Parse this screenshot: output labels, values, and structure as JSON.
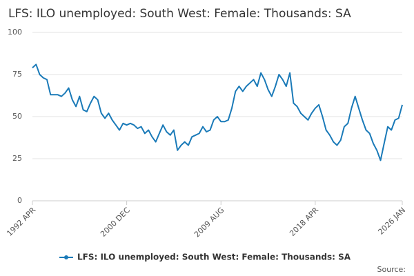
{
  "chart_data": {
    "type": "line",
    "title": "LFS: ILO unemployed: South West: Female: Thousands: SA",
    "source": "Source:",
    "categories": [
      "1992 APR",
      null,
      null,
      null,
      null,
      null,
      null,
      null,
      null,
      null,
      null,
      null,
      null,
      null,
      null,
      null,
      null,
      null,
      null,
      null,
      null,
      null,
      null,
      null,
      null,
      null,
      "2000 DEC",
      null,
      null,
      null,
      null,
      null,
      null,
      null,
      null,
      null,
      null,
      null,
      null,
      null,
      null,
      null,
      null,
      null,
      null,
      null,
      null,
      null,
      null,
      null,
      null,
      null,
      "2009 AUG",
      null,
      null,
      null,
      null,
      null,
      null,
      null,
      null,
      null,
      null,
      null,
      null,
      null,
      null,
      null,
      null,
      null,
      null,
      null,
      null,
      null,
      null,
      null,
      null,
      null,
      "2018 APR",
      null,
      null,
      null,
      null,
      null,
      null,
      null,
      null,
      null,
      null,
      null,
      null,
      null,
      null,
      null,
      null,
      null,
      null,
      null,
      null,
      null,
      null,
      null,
      "2026 JAN"
    ],
    "series": [
      {
        "name": "LFS: ILO unemployed: South West: Female: Thousands: SA",
        "color": "#1a7ab8",
        "values": [
          79,
          81,
          75,
          73,
          72,
          63,
          63,
          63,
          62,
          64,
          67,
          60,
          56,
          62,
          54,
          53,
          58,
          62,
          60,
          52,
          49,
          52,
          48,
          45,
          42,
          46,
          45,
          46,
          45,
          43,
          44,
          40,
          42,
          38,
          35,
          40,
          45,
          41,
          39,
          42,
          30,
          33,
          35,
          33,
          38,
          39,
          40,
          44,
          41,
          42,
          48,
          50,
          47,
          47,
          48,
          55,
          65,
          68,
          65,
          68,
          70,
          72,
          68,
          76,
          72,
          66,
          62,
          68,
          75,
          72,
          68,
          76,
          58,
          56,
          52,
          50,
          48,
          52,
          55,
          57,
          50,
          42,
          39,
          35,
          33,
          36,
          44,
          46,
          55,
          62,
          55,
          48,
          42,
          40,
          34,
          30,
          24,
          34,
          44,
          42,
          48,
          49,
          57
        ]
      }
    ],
    "ylim": [
      0,
      100
    ],
    "yticks": [
      0,
      25,
      50,
      75,
      100
    ],
    "grid": true,
    "legend": "bottom"
  }
}
